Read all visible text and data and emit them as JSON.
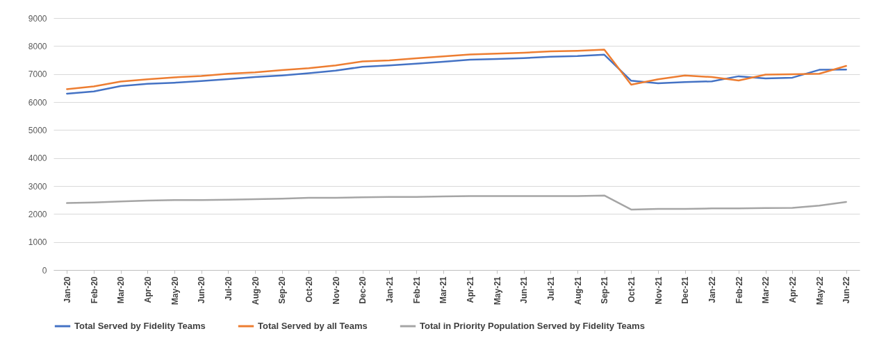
{
  "chart_data": {
    "type": "line",
    "categories": [
      "Jan-20",
      "Feb-20",
      "Mar-20",
      "Apr-20",
      "May-20",
      "Jun-20",
      "Jul-20",
      "Aug-20",
      "Sep-20",
      "Oct-20",
      "Nov-20",
      "Dec-20",
      "Jan-21",
      "Feb-21",
      "Mar-21",
      "Apr-21",
      "May-21",
      "Jun-21",
      "Jul-21",
      "Aug-21",
      "Sep-21",
      "Oct-21",
      "Nov-21",
      "Dec-21",
      "Jan-22",
      "Feb-22",
      "Mar-22",
      "Apr-22",
      "May-22",
      "Jun-22"
    ],
    "series": [
      {
        "name": "Total Served by Fidelity Teams",
        "color": "#4472c4",
        "values": [
          6300,
          6380,
          6570,
          6650,
          6690,
          6750,
          6820,
          6890,
          6950,
          7030,
          7120,
          7260,
          7310,
          7370,
          7440,
          7510,
          7540,
          7570,
          7620,
          7640,
          7690,
          6760,
          6670,
          6710,
          6740,
          6920,
          6840,
          6870,
          7150,
          7160
        ]
      },
      {
        "name": "Total Served by all Teams",
        "color": "#ed7d31",
        "values": [
          6460,
          6560,
          6730,
          6810,
          6880,
          6930,
          7010,
          7060,
          7140,
          7210,
          7310,
          7450,
          7490,
          7560,
          7630,
          7700,
          7730,
          7760,
          7810,
          7830,
          7870,
          6620,
          6810,
          6950,
          6890,
          6770,
          6980,
          6990,
          7010,
          7290
        ]
      },
      {
        "name": "Total in Priority Population Served by Fidelity Teams",
        "color": "#a5a5a5",
        "values": [
          2390,
          2410,
          2450,
          2480,
          2500,
          2500,
          2510,
          2530,
          2550,
          2580,
          2580,
          2600,
          2610,
          2610,
          2630,
          2640,
          2640,
          2640,
          2640,
          2640,
          2660,
          2160,
          2180,
          2180,
          2200,
          2200,
          2210,
          2220,
          2300,
          2430
        ]
      }
    ],
    "ylim": [
      0,
      9000
    ],
    "yticks": [
      0,
      1000,
      2000,
      3000,
      4000,
      5000,
      6000,
      7000,
      8000,
      9000
    ],
    "grid": "y",
    "legend": "bottom",
    "marker": "none",
    "line_style": "solid"
  }
}
